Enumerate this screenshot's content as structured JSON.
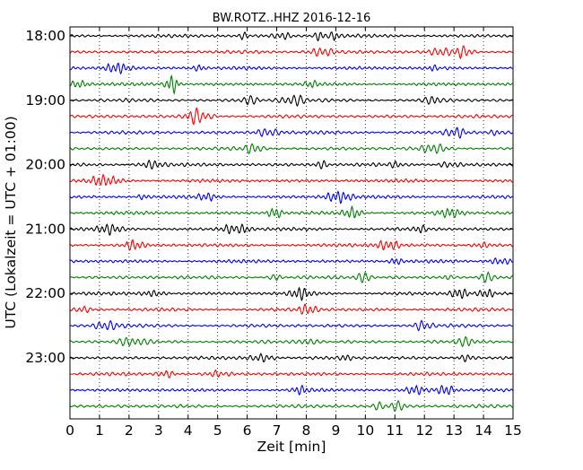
{
  "chart_data": {
    "type": "line",
    "title": "BW.ROTZ..HHZ 2016-12-16",
    "xlabel": "Zeit  [min]",
    "ylabel": "UTC (Lokalzeit = UTC + 01:00)",
    "xlim": [
      0,
      15
    ],
    "xticks": [
      0,
      1,
      2,
      3,
      4,
      5,
      6,
      7,
      8,
      9,
      10,
      11,
      12,
      13,
      14,
      15
    ],
    "yticks": [
      {
        "label": "18:00",
        "trace_index": 0
      },
      {
        "label": "19:00",
        "trace_index": 4
      },
      {
        "label": "20:00",
        "trace_index": 8
      },
      {
        "label": "21:00",
        "trace_index": 12
      },
      {
        "label": "22:00",
        "trace_index": 16
      },
      {
        "label": "23:00",
        "trace_index": 20
      }
    ],
    "trace_count": 24,
    "trace_minutes": 15,
    "trace_colors": [
      "#000000",
      "#ff0000",
      "#0000ff",
      "#008000"
    ],
    "grid": "vertical dotted",
    "traces": [
      {
        "start": "18:00",
        "color": "#000000"
      },
      {
        "start": "18:15",
        "color": "#ff0000"
      },
      {
        "start": "18:30",
        "color": "#0000ff"
      },
      {
        "start": "18:45",
        "color": "#008000"
      },
      {
        "start": "19:00",
        "color": "#000000"
      },
      {
        "start": "19:15",
        "color": "#ff0000"
      },
      {
        "start": "19:30",
        "color": "#0000ff"
      },
      {
        "start": "19:45",
        "color": "#008000"
      },
      {
        "start": "20:00",
        "color": "#000000"
      },
      {
        "start": "20:15",
        "color": "#ff0000"
      },
      {
        "start": "20:30",
        "color": "#0000ff"
      },
      {
        "start": "20:45",
        "color": "#008000"
      },
      {
        "start": "21:00",
        "color": "#000000"
      },
      {
        "start": "21:15",
        "color": "#ff0000"
      },
      {
        "start": "21:30",
        "color": "#0000ff"
      },
      {
        "start": "21:45",
        "color": "#008000"
      },
      {
        "start": "22:00",
        "color": "#000000"
      },
      {
        "start": "22:15",
        "color": "#ff0000"
      },
      {
        "start": "22:30",
        "color": "#0000ff"
      },
      {
        "start": "22:45",
        "color": "#008000"
      },
      {
        "start": "23:00",
        "color": "#000000"
      },
      {
        "start": "23:15",
        "color": "#ff0000"
      },
      {
        "start": "23:30",
        "color": "#0000ff"
      },
      {
        "start": "23:45",
        "color": "#008000"
      }
    ]
  }
}
